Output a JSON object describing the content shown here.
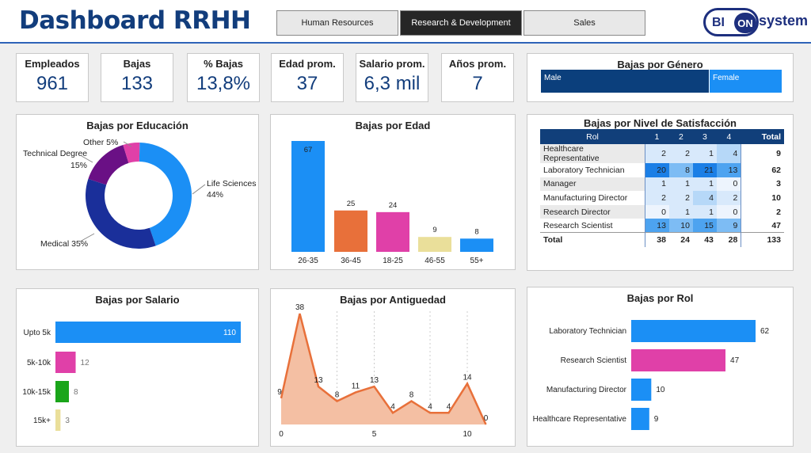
{
  "header": {
    "title": "Dashboard RRHH",
    "tabs": [
      "Human Resources",
      "Research & Development",
      "Sales"
    ],
    "active_tab": 1,
    "logo": {
      "bi": "BI",
      "on": "ON",
      "system": "system"
    }
  },
  "kpis": [
    {
      "label": "Empleados",
      "value": "961"
    },
    {
      "label": "Bajas",
      "value": "133"
    },
    {
      "label": "% Bajas",
      "value": "13,8%"
    },
    {
      "label": "Edad prom.",
      "value": "37"
    },
    {
      "label": "Salario prom.",
      "value": "6,3 mil"
    },
    {
      "label": "Años prom.",
      "value": "7"
    }
  ],
  "gender": {
    "title": "Bajas por Género",
    "male_label": "Male",
    "female_label": "Female",
    "male_color": "#0b3f7c",
    "female_color": "#1b8ff5"
  },
  "satisfaction": {
    "title": "Bajas por Nivel de Satisfacción",
    "headers": [
      "Rol",
      "1",
      "2",
      "3",
      "4",
      "Total"
    ],
    "rows": [
      {
        "role": "Healthcare Representative",
        "v": [
          "2",
          "2",
          "1",
          "4"
        ],
        "total": "9"
      },
      {
        "role": "Laboratory Technician",
        "v": [
          "20",
          "8",
          "21",
          "13"
        ],
        "total": "62"
      },
      {
        "role": "Manager",
        "v": [
          "1",
          "1",
          "1",
          "0"
        ],
        "total": "3"
      },
      {
        "role": "Manufacturing Director",
        "v": [
          "2",
          "2",
          "4",
          "2"
        ],
        "total": "10"
      },
      {
        "role": "Research Director",
        "v": [
          "0",
          "1",
          "1",
          "0"
        ],
        "total": "2"
      },
      {
        "role": "Research Scientist",
        "v": [
          "13",
          "10",
          "15",
          "9"
        ],
        "total": "47"
      }
    ],
    "total_row": {
      "label": "Total",
      "v": [
        "38",
        "24",
        "43",
        "28"
      ],
      "total": "133"
    }
  },
  "chart_data": [
    {
      "type": "pie",
      "title": "Bajas por Educación",
      "categories": [
        "Life Sciences",
        "Medical",
        "Technical Degree",
        "Other"
      ],
      "values": [
        44,
        35,
        15,
        5
      ],
      "labels": [
        "Life Sciences 44%",
        "Medical 35%",
        "Technical Degree 15%",
        "Other 5%"
      ],
      "colors": [
        "#1b8ff5",
        "#1a2f9a",
        "#6a1085",
        "#e040a8"
      ]
    },
    {
      "type": "bar",
      "title": "Bajas por Edad",
      "categories": [
        "26-35",
        "36-45",
        "18-25",
        "46-55",
        "55+"
      ],
      "values": [
        67,
        25,
        24,
        9,
        8
      ],
      "colors": [
        "#1b8ff5",
        "#e8703a",
        "#e040a8",
        "#eadf9a",
        "#1b8ff5"
      ]
    },
    {
      "type": "bar",
      "orientation": "horizontal",
      "title": "Bajas por Salario",
      "categories": [
        "Upto 5k",
        "5k-10k",
        "10k-15k",
        "15k+"
      ],
      "values": [
        110,
        12,
        8,
        3
      ],
      "colors": [
        "#1b8ff5",
        "#e040a8",
        "#1aa51a",
        "#eadf9a"
      ]
    },
    {
      "type": "area",
      "title": "Bajas por Antiguedad",
      "x": [
        0,
        1,
        2,
        3,
        4,
        5,
        6,
        7,
        8,
        9,
        10,
        11
      ],
      "values": [
        9,
        38,
        13,
        8,
        11,
        13,
        4,
        8,
        4,
        4,
        14,
        0
      ],
      "xticks": [
        "0",
        "5",
        "10"
      ],
      "color": "#e8703a"
    },
    {
      "type": "bar",
      "orientation": "horizontal",
      "title": "Bajas por Rol",
      "categories": [
        "Laboratory Technician",
        "Research Scientist",
        "Manufacturing Director",
        "Healthcare Representative"
      ],
      "values": [
        62,
        47,
        10,
        9
      ],
      "colors": [
        "#1b8ff5",
        "#e040a8",
        "#1b8ff5",
        "#1b8ff5"
      ]
    }
  ]
}
